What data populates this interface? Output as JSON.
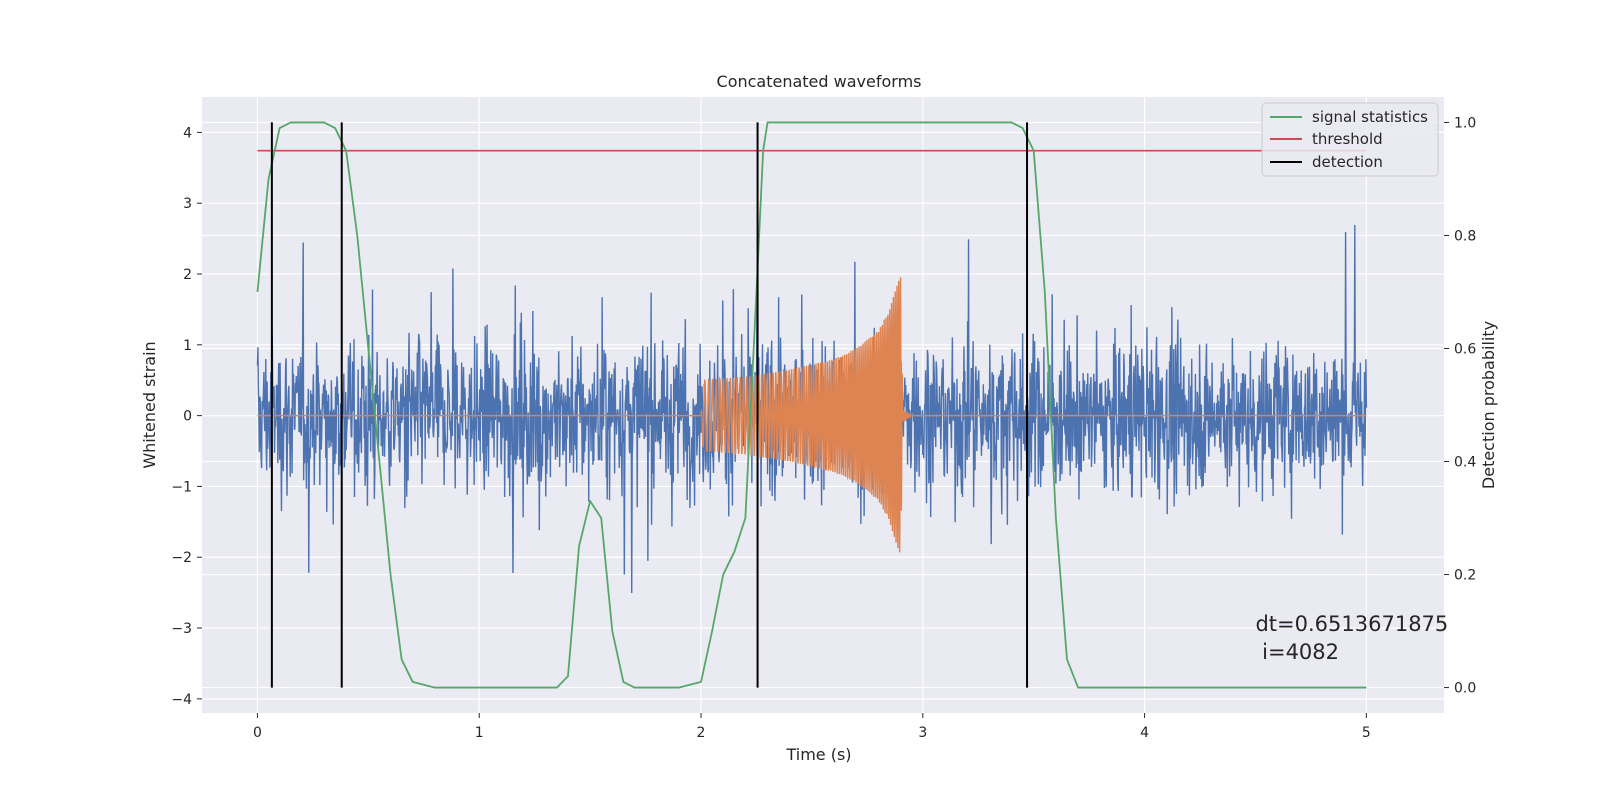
{
  "chart_data": {
    "type": "line",
    "title": "Concatenated waveforms",
    "xlabel": "Time (s)",
    "ylabel_left": "Whitened strain",
    "ylabel_right": "Detection probability",
    "xlim": [
      -0.25,
      5.35
    ],
    "ylim_left": [
      -4.2,
      4.5
    ],
    "ylim_right": [
      -0.045,
      1.045
    ],
    "xticks": [
      0,
      1,
      2,
      3,
      4,
      5
    ],
    "xtick_labels": [
      "0",
      "1",
      "2",
      "3",
      "4",
      "5"
    ],
    "yticks_left": [
      -4,
      -3,
      -2,
      -1,
      0,
      1,
      2,
      3,
      4
    ],
    "ytick_labels_left": [
      "−4",
      "−3",
      "−2",
      "−1",
      "0",
      "1",
      "2",
      "3",
      "4"
    ],
    "yticks_right": [
      0.0,
      0.2,
      0.4,
      0.6,
      0.8,
      1.0
    ],
    "ytick_labels_right": [
      "0.0",
      "0.2",
      "0.4",
      "0.6",
      "0.8",
      "1.0"
    ],
    "grid": true,
    "legend_position": "top-right",
    "legend": [
      {
        "label": "signal statistics",
        "color": "#55a868"
      },
      {
        "label": "threshold",
        "color": "#c44e52"
      },
      {
        "label": "detection",
        "color": "#000000"
      }
    ],
    "series": [
      {
        "name": "whitened strain (noise)",
        "axis": "left",
        "color": "#4c72b0",
        "x_range": [
          0,
          5
        ],
        "envelope_min": -3.8,
        "envelope_max": 4.1
      },
      {
        "name": "injected waveform",
        "axis": "left",
        "color": "#dd8452",
        "x": [
          0,
          2.0,
          2.01,
          2.2,
          2.4,
          2.6,
          2.7,
          2.8,
          2.85,
          2.9,
          2.91,
          2.95,
          5.0
        ],
        "amplitude": [
          0,
          0,
          0.5,
          0.55,
          0.65,
          0.8,
          0.95,
          1.2,
          1.5,
          2.0,
          0.08,
          0.0,
          0
        ]
      },
      {
        "name": "signal statistics",
        "axis": "right",
        "color": "#55a868",
        "x": [
          0,
          0.05,
          0.1,
          0.15,
          0.2,
          0.25,
          0.3,
          0.35,
          0.4,
          0.45,
          0.5,
          0.55,
          0.6,
          0.65,
          0.7,
          0.8,
          1.0,
          1.2,
          1.35,
          1.4,
          1.45,
          1.5,
          1.55,
          1.6,
          1.65,
          1.7,
          1.8,
          1.9,
          2.0,
          2.05,
          2.1,
          2.15,
          2.2,
          2.25,
          2.28,
          2.3,
          2.4,
          3.0,
          3.4,
          3.45,
          3.5,
          3.55,
          3.6,
          3.65,
          3.7,
          4.0,
          5.0
        ],
        "y": [
          0.7,
          0.9,
          0.99,
          1.0,
          1.0,
          1.0,
          1.0,
          0.99,
          0.95,
          0.8,
          0.6,
          0.4,
          0.2,
          0.05,
          0.01,
          0.0,
          0.0,
          0.0,
          0.0,
          0.02,
          0.25,
          0.33,
          0.3,
          0.1,
          0.01,
          0.0,
          0.0,
          0.0,
          0.01,
          0.1,
          0.2,
          0.24,
          0.3,
          0.7,
          0.95,
          1.0,
          1.0,
          1.0,
          1.0,
          0.99,
          0.95,
          0.7,
          0.3,
          0.05,
          0.0,
          0.0,
          0.0
        ]
      },
      {
        "name": "threshold",
        "axis": "right",
        "color": "#c44e52",
        "x": [
          0,
          5
        ],
        "y": [
          0.95,
          0.95
        ]
      }
    ],
    "detections": [
      {
        "x": 0.065,
        "y": [
          0.0,
          1.0
        ]
      },
      {
        "x": 0.38,
        "y": [
          0.0,
          1.0
        ]
      },
      {
        "x": 2.255,
        "y": [
          0.0,
          1.0
        ]
      },
      {
        "x": 3.47,
        "y": [
          0.0,
          1.0
        ]
      }
    ],
    "annotation": {
      "line1": "dt=0.6513671875",
      "line2": " i=4082",
      "x": 4.5,
      "y": 0.1
    }
  }
}
